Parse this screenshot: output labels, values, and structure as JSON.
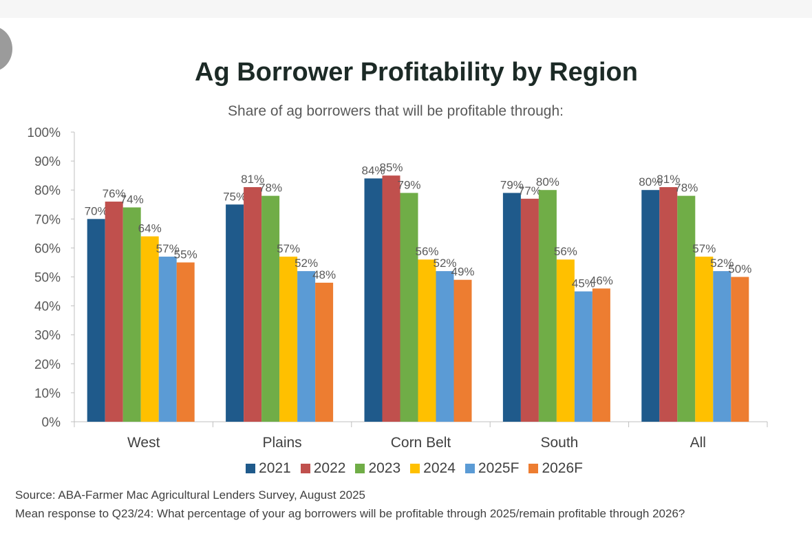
{
  "chart_data": {
    "type": "bar",
    "title": "Ag Borrower Profitability by Region",
    "subtitle": "Share of ag borrowers that will be profitable through:",
    "categories": [
      "West",
      "Plains",
      "Corn Belt",
      "South",
      "All"
    ],
    "series": [
      {
        "name": "2021",
        "color": "#1f5a8b",
        "values": [
          70,
          75,
          84,
          79,
          80
        ]
      },
      {
        "name": "2022",
        "color": "#c0504d",
        "values": [
          76,
          81,
          85,
          77,
          81
        ]
      },
      {
        "name": "2023",
        "color": "#70ad47",
        "values": [
          74,
          78,
          79,
          80,
          78
        ]
      },
      {
        "name": "2024",
        "color": "#ffc000",
        "values": [
          64,
          57,
          56,
          56,
          57
        ]
      },
      {
        "name": "2025F",
        "color": "#5b9bd5",
        "values": [
          57,
          52,
          52,
          45,
          52
        ]
      },
      {
        "name": "2026F",
        "color": "#ed7d31",
        "values": [
          55,
          48,
          49,
          46,
          50
        ]
      }
    ],
    "ylim": [
      0,
      100
    ],
    "yticks": [
      "0%",
      "10%",
      "20%",
      "30%",
      "40%",
      "50%",
      "60%",
      "70%",
      "80%",
      "90%",
      "100%"
    ],
    "value_suffix": "%",
    "xlabel": "",
    "ylabel": "",
    "legend": "bottom"
  },
  "footer": {
    "source": "Source: ABA-Farmer Mac Agricultural Lenders Survey, August 2025",
    "note": "Mean response to Q23/24: What percentage of your ag borrowers will be profitable through 2025/remain profitable through 2026?"
  }
}
